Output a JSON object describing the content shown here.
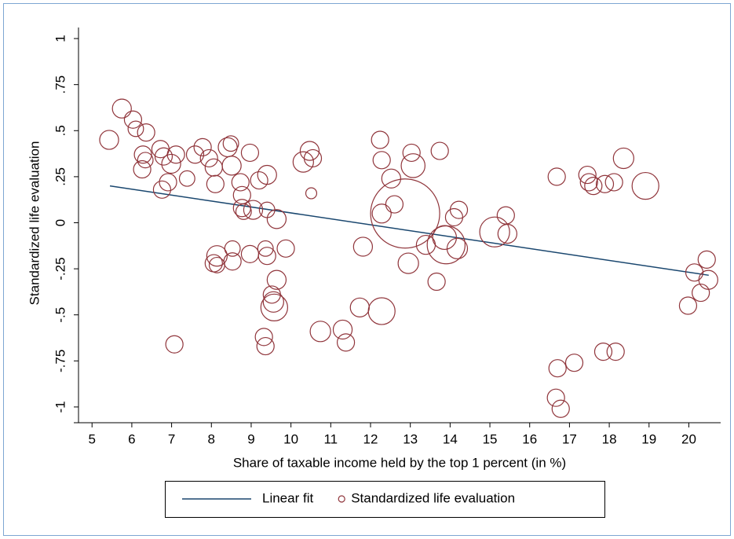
{
  "chart_data": {
    "type": "scatter",
    "xlabel": "Share of taxable income held by the top 1 percent (in %)",
    "ylabel": "Standardized life evaluation",
    "xlim": [
      4.66,
      20.8
    ],
    "ylim": [
      -1.06,
      1.06
    ],
    "xticks": [
      5,
      6,
      7,
      8,
      9,
      10,
      11,
      12,
      13,
      14,
      15,
      16,
      17,
      18,
      19,
      20
    ],
    "yticks": [
      {
        "value": -1,
        "label": "-1"
      },
      {
        "value": -0.75,
        "label": "-.75"
      },
      {
        "value": -0.5,
        "label": "-.5"
      },
      {
        "value": -0.25,
        "label": "-.25"
      },
      0,
      {
        "value": 0.25,
        "label": ".25"
      },
      {
        "value": 0.5,
        "label": ".5"
      },
      {
        "value": 0.75,
        "label": ".75"
      },
      1
    ],
    "grid": false,
    "legend": "bottom",
    "series": [
      {
        "name": "Linear fit",
        "type": "line",
        "color": "#1a476f",
        "x": [
          5.45,
          20.5
        ],
        "values": [
          0.2,
          -0.285
        ]
      },
      {
        "name": "Standardized life evaluation",
        "type": "scatter",
        "color": "#90353b",
        "x": [
          5.43,
          5.75,
          6.03,
          6.1,
          6.36,
          6.28,
          6.34,
          6.26,
          6.72,
          6.8,
          6.76,
          6.91,
          6.99,
          7.11,
          7.07,
          7.39,
          7.59,
          7.78,
          7.94,
          8.06,
          8.1,
          8.06,
          8.14,
          8.14,
          8.41,
          8.49,
          8.51,
          8.53,
          8.53,
          8.73,
          8.77,
          8.77,
          8.81,
          8.97,
          8.97,
          9.05,
          9.2,
          9.4,
          9.4,
          9.36,
          9.4,
          9.32,
          9.36,
          9.64,
          9.52,
          9.56,
          9.58,
          9.64,
          9.87,
          10.31,
          10.47,
          10.55,
          10.51,
          10.74,
          11.3,
          11.38,
          11.81,
          11.73,
          12.24,
          12.28,
          12.28,
          12.28,
          12.52,
          12.6,
          12.87,
          13.03,
          13.07,
          12.95,
          13.39,
          13.74,
          13.66,
          13.9,
          13.86,
          14.1,
          14.22,
          14.18,
          15.12,
          15.4,
          15.44,
          16.68,
          16.7,
          16.66,
          16.78,
          17.12,
          17.45,
          17.49,
          17.6,
          17.89,
          18.12,
          17.85,
          18.16,
          18.36,
          18.91,
          19.98,
          20.14,
          20.3,
          20.45,
          20.49
        ],
        "values": [
          0.45,
          0.62,
          0.56,
          0.51,
          0.49,
          0.37,
          0.34,
          0.29,
          0.4,
          0.36,
          0.18,
          0.22,
          0.32,
          0.37,
          -0.66,
          0.24,
          0.37,
          0.41,
          0.35,
          0.3,
          0.21,
          -0.22,
          -0.18,
          -0.23,
          0.41,
          0.43,
          0.31,
          -0.14,
          -0.21,
          0.22,
          0.15,
          0.08,
          0.06,
          0.38,
          -0.17,
          0.07,
          0.23,
          0.26,
          0.07,
          -0.14,
          -0.18,
          -0.62,
          -0.67,
          -0.31,
          -0.39,
          -0.43,
          -0.46,
          0.02,
          -0.14,
          0.33,
          0.39,
          0.35,
          0.16,
          -0.59,
          -0.58,
          -0.65,
          -0.13,
          -0.46,
          0.45,
          0.34,
          -0.48,
          0.05,
          0.24,
          0.1,
          0.05,
          0.38,
          0.31,
          -0.22,
          -0.12,
          0.39,
          -0.32,
          -0.12,
          -0.08,
          0.03,
          0.07,
          -0.14,
          -0.05,
          0.04,
          -0.06,
          0.25,
          -0.79,
          -0.95,
          -1.01,
          -0.76,
          0.26,
          0.22,
          0.2,
          0.21,
          0.22,
          -0.7,
          -0.7,
          0.35,
          0.2,
          -0.45,
          -0.27,
          -0.38,
          -0.2,
          -0.31
        ],
        "sizes": [
          1.2,
          1.2,
          1,
          0.8,
          1,
          1,
          0.8,
          1,
          1,
          1,
          1,
          1,
          1.2,
          1,
          1,
          0.8,
          1,
          1,
          1,
          1,
          1,
          1,
          1.4,
          0.8,
          1.2,
          0.8,
          1.2,
          0.8,
          1,
          1,
          1,
          1,
          0.8,
          1,
          1,
          1.2,
          1,
          1.2,
          0.8,
          0.8,
          1,
          1,
          1,
          1.2,
          1,
          1.4,
          2.4,
          1.2,
          1,
          1.4,
          1.2,
          1,
          0.4,
          1.4,
          1.2,
          1,
          1.2,
          1.2,
          1,
          1,
          2.4,
          1.2,
          1.2,
          1,
          16,
          1,
          1.9,
          1.4,
          1.2,
          1,
          1,
          4.8,
          1.9,
          1,
          1,
          1.4,
          3,
          1,
          1.2,
          1,
          1,
          1,
          1,
          1,
          1,
          1,
          1,
          1,
          1,
          1,
          1,
          1.4,
          2.4,
          1,
          1,
          1,
          1,
          1.2
        ]
      }
    ]
  }
}
